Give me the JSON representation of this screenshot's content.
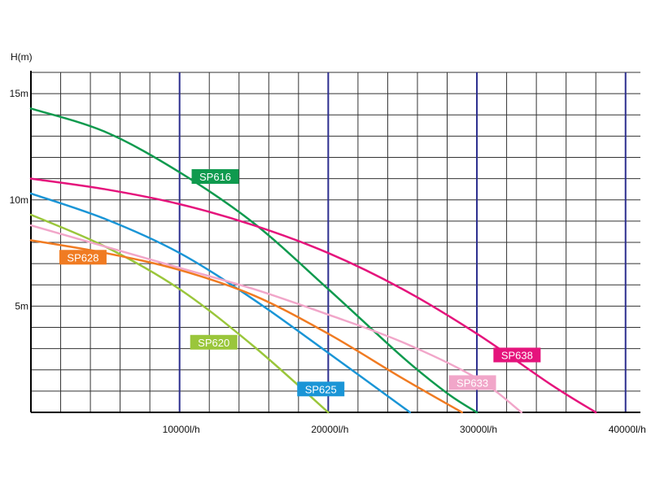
{
  "chart_data": {
    "type": "line",
    "ylabel": "H(m)",
    "xlim": [
      0,
      41000
    ],
    "ylim": [
      0,
      16
    ],
    "grid": true,
    "x_ticks": [
      {
        "value": 10000,
        "label": "10000l/h"
      },
      {
        "value": 20000,
        "label": "20000l/h"
      },
      {
        "value": 30000,
        "label": "30000l/h"
      },
      {
        "value": 40000,
        "label": "40000l/h"
      }
    ],
    "y_ticks": [
      {
        "value": 5,
        "label": "5m"
      },
      {
        "value": 10,
        "label": "10m"
      },
      {
        "value": 15,
        "label": "15m"
      }
    ],
    "series": [
      {
        "name": "SP616",
        "color": "#0f9a4e",
        "label_at": [
          12400,
          11.1
        ],
        "x": [
          0,
          5000,
          10000,
          15000,
          20000,
          25000,
          28000,
          30000
        ],
        "y": [
          14.3,
          13.2,
          11.3,
          8.9,
          5.8,
          2.6,
          0.9,
          0
        ]
      },
      {
        "name": "SP638",
        "color": "#e5147c",
        "label_at": [
          32700,
          2.7
        ],
        "x": [
          0,
          5000,
          10000,
          15000,
          20000,
          25000,
          30000,
          35000,
          38000
        ],
        "y": [
          11.0,
          10.5,
          9.8,
          8.8,
          7.5,
          5.8,
          3.7,
          1.3,
          0
        ]
      },
      {
        "name": "SP625",
        "color": "#1a95d6",
        "label_at": [
          19500,
          1.1
        ],
        "x": [
          0,
          5000,
          10000,
          15000,
          20000,
          25500
        ],
        "y": [
          10.3,
          9.1,
          7.5,
          5.3,
          2.8,
          0
        ]
      },
      {
        "name": "SP620",
        "color": "#9ac63b",
        "label_at": [
          12300,
          3.3
        ],
        "x": [
          0,
          5000,
          10000,
          15000,
          20000
        ],
        "y": [
          9.3,
          7.8,
          5.8,
          3.1,
          0
        ]
      },
      {
        "name": "SP633",
        "color": "#f1a6c9",
        "label_at": [
          29700,
          1.4
        ],
        "x": [
          0,
          5000,
          10000,
          15000,
          20000,
          25000,
          30000,
          33000
        ],
        "y": [
          8.8,
          7.8,
          6.8,
          5.8,
          4.6,
          3.3,
          1.6,
          0
        ]
      },
      {
        "name": "SP628",
        "color": "#f07b22",
        "label_at": [
          3500,
          7.3
        ],
        "x": [
          0,
          5000,
          10000,
          15000,
          20000,
          25000,
          29000
        ],
        "y": [
          8.1,
          7.5,
          6.7,
          5.5,
          3.7,
          1.6,
          0
        ]
      }
    ]
  }
}
